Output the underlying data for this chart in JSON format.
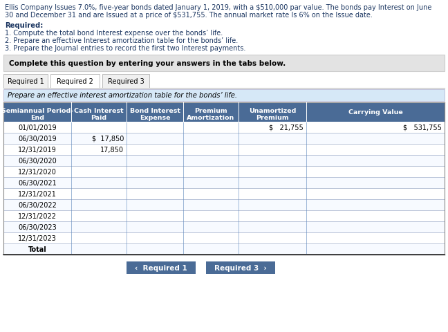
{
  "title_line1": "Ellis Company Issues 7.0%, five-year bonds dated January 1, 2019, with a $510,000 par value. The bonds pay Interest on June",
  "title_line2": "30 and December 31 and are Issued at a price of $531,755. The annual market rate Is 6% on the Issue date.",
  "required_header": "Required:",
  "required_items": [
    "1. Compute the total bond Interest expense over the bonds’ life.",
    "2. Prepare an effective Interest amortization table for the bonds’ life.",
    "3. Prepare the Journal entries to record the first two Interest payments."
  ],
  "complete_box_text": "Complete this question by entering your answers in the tabs below.",
  "tabs": [
    "Required 1",
    "Required 2",
    "Required 3"
  ],
  "instruction_text": "Prepare an effective interest amortization table for the bonds’ life.",
  "col_headers": [
    "Semiannual Period-\nEnd",
    "Cash Interest\nPaid",
    "Bond Interest\nExpense",
    "Premium\nAmortization",
    "Unamortized\nPremium",
    "Carrying Value"
  ],
  "rows": [
    [
      "01/01/2019",
      "",
      "",
      "",
      "$   21,755",
      "$   531,755"
    ],
    [
      "06/30/2019",
      "$  17,850",
      "",
      "",
      "",
      ""
    ],
    [
      "12/31/2019",
      "17,850",
      "",
      "",
      "",
      ""
    ],
    [
      "06/30/2020",
      "",
      "",
      "",
      "",
      ""
    ],
    [
      "12/31/2020",
      "",
      "",
      "",
      "",
      ""
    ],
    [
      "06/30/2021",
      "",
      "",
      "",
      "",
      ""
    ],
    [
      "12/31/2021",
      "",
      "",
      "",
      "",
      ""
    ],
    [
      "06/30/2022",
      "",
      "",
      "",
      "",
      ""
    ],
    [
      "12/31/2022",
      "",
      "",
      "",
      "",
      ""
    ],
    [
      "06/30/2023",
      "",
      "",
      "",
      "",
      ""
    ],
    [
      "12/31/2023",
      "",
      "",
      "",
      "",
      ""
    ],
    [
      "Total",
      "",
      "",
      "",
      "",
      ""
    ]
  ],
  "btn1_text": "‹  Required 1",
  "btn3_text": "Required 3  ›",
  "bg_color": "#ffffff",
  "header_bg": "#4a6b96",
  "complete_box_bg": "#e3e3e3",
  "instruction_bg": "#d6e8f7",
  "btn_color": "#4a6b96",
  "title_color": "#1a3560",
  "grid_line_color": "#7a9cc8",
  "tab_border": "#bbbbbb"
}
